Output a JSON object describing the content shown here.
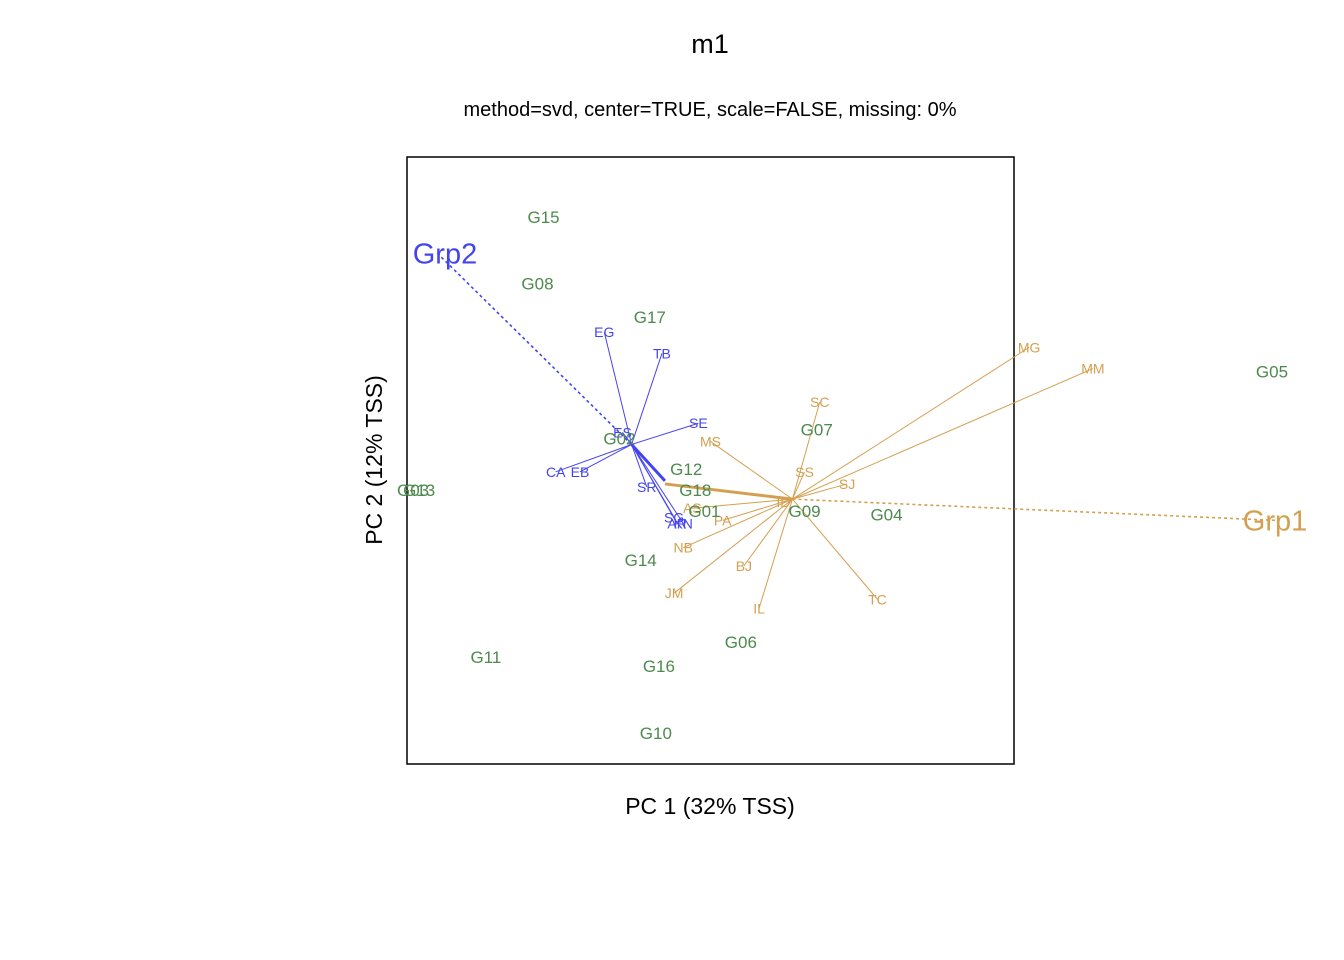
{
  "chart_data": {
    "type": "scatter",
    "title": "m1",
    "subtitle": "method=svd, center=TRUE, scale=FALSE, missing: 0%",
    "xlabel": "PC 1 (32% TSS)",
    "ylabel": "PC 2 (12% TSS)",
    "xlim": [
      -1,
      1
    ],
    "ylim": [
      -1,
      1
    ],
    "axes_ticks": false,
    "grid": false,
    "colors": {
      "genotype": "#4d8a4d",
      "grp1": "#d4a050",
      "grp2": "#4444ee",
      "frame": "#000000",
      "text": "#000000"
    },
    "genotypes": [
      {
        "label": "G15",
        "x": -0.55,
        "y": 0.9
      },
      {
        "label": "G08",
        "x": -0.57,
        "y": 0.68
      },
      {
        "label": "G17",
        "x": -0.2,
        "y": 0.57
      },
      {
        "label": "G05",
        "x": 1.85,
        "y": 0.39
      },
      {
        "label": "G07",
        "x": 0.35,
        "y": 0.2
      },
      {
        "label": "G02",
        "x": -0.3,
        "y": 0.17
      },
      {
        "label": "G12",
        "x": -0.08,
        "y": 0.07
      },
      {
        "label": "G18",
        "x": -0.05,
        "y": 0.0
      },
      {
        "label": "G03",
        "x": -0.98,
        "y": 0.0
      },
      {
        "label": "G13",
        "x": -0.96,
        "y": 0.0
      },
      {
        "label": "G01",
        "x": -0.02,
        "y": -0.07
      },
      {
        "label": "G09",
        "x": 0.31,
        "y": -0.07
      },
      {
        "label": "G04",
        "x": 0.58,
        "y": -0.08
      },
      {
        "label": "G14",
        "x": -0.23,
        "y": -0.23
      },
      {
        "label": "G06",
        "x": 0.1,
        "y": -0.5
      },
      {
        "label": "G11",
        "x": -0.74,
        "y": -0.55
      },
      {
        "label": "G16",
        "x": -0.17,
        "y": -0.58
      },
      {
        "label": "G10",
        "x": -0.18,
        "y": -0.8
      }
    ],
    "groups": [
      {
        "name": "Grp1",
        "centroid": {
          "x": 0.27,
          "y": -0.03
        },
        "origin_marker": {
          "x": -0.15,
          "y": 0.02
        },
        "label": {
          "x": 1.86,
          "y": -0.1
        },
        "environments": [
          {
            "label": "MG",
            "x": 1.05,
            "y": 0.47
          },
          {
            "label": "MM",
            "x": 1.26,
            "y": 0.4
          },
          {
            "label": "SC",
            "x": 0.36,
            "y": 0.29
          },
          {
            "label": "MS",
            "x": 0.0,
            "y": 0.16
          },
          {
            "label": "SS",
            "x": 0.31,
            "y": 0.06
          },
          {
            "label": "SJ",
            "x": 0.45,
            "y": 0.02
          },
          {
            "label": "ID",
            "x": 0.24,
            "y": -0.04
          },
          {
            "label": "AS",
            "x": -0.06,
            "y": -0.06
          },
          {
            "label": "PA",
            "x": 0.04,
            "y": -0.1
          },
          {
            "label": "NB",
            "x": -0.09,
            "y": -0.19
          },
          {
            "label": "BJ",
            "x": 0.11,
            "y": -0.25
          },
          {
            "label": "JM",
            "x": -0.12,
            "y": -0.34
          },
          {
            "label": "TC",
            "x": 0.55,
            "y": -0.36
          },
          {
            "label": "IL",
            "x": 0.16,
            "y": -0.39
          }
        ]
      },
      {
        "name": "Grp2",
        "centroid": {
          "x": -0.26,
          "y": 0.15
        },
        "origin_marker": {
          "x": -0.15,
          "y": 0.03
        },
        "label": {
          "x": -0.9,
          "y": 0.78
        },
        "environments": [
          {
            "label": "EG",
            "x": -0.35,
            "y": 0.52
          },
          {
            "label": "TB",
            "x": -0.16,
            "y": 0.45
          },
          {
            "label": "SE",
            "x": -0.04,
            "y": 0.22
          },
          {
            "label": "ES",
            "x": -0.29,
            "y": 0.19
          },
          {
            "label": "CA",
            "x": -0.51,
            "y": 0.06
          },
          {
            "label": "EB",
            "x": -0.43,
            "y": 0.06
          },
          {
            "label": "SR",
            "x": -0.21,
            "y": 0.01
          },
          {
            "label": "SG",
            "x": -0.12,
            "y": -0.09
          },
          {
            "label": "AR",
            "x": -0.11,
            "y": -0.11
          },
          {
            "label": "KN",
            "x": -0.09,
            "y": -0.11
          }
        ]
      }
    ]
  }
}
